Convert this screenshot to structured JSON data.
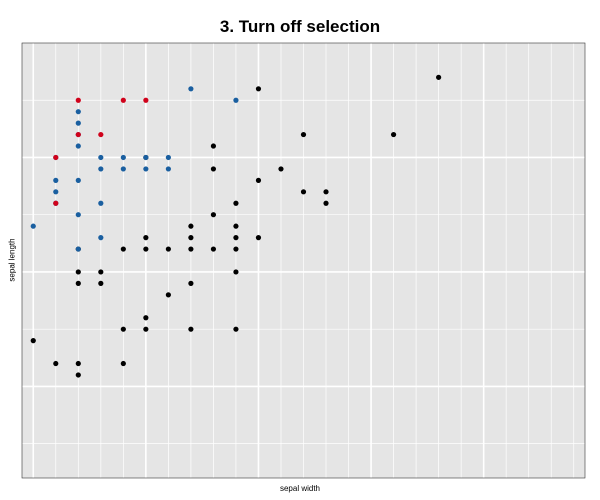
{
  "chart_data": {
    "type": "scatter",
    "title": "3. Turn off selection",
    "xlabel": "sepal width",
    "ylabel": "sepal length",
    "xlim": [
      1.95,
      4.45
    ],
    "ylim": [
      4.2,
      8.0
    ],
    "grid": true,
    "legend": "none",
    "background": "#e5e5e5",
    "grid_color": "#ffffff",
    "series": [
      {
        "color": "#000000",
        "points": [
          [
            3.8,
            7.7
          ],
          [
            3.0,
            7.6
          ],
          [
            3.6,
            7.2
          ],
          [
            3.2,
            7.2
          ],
          [
            2.8,
            7.1
          ],
          [
            2.5,
            7.0
          ],
          [
            2.8,
            6.9
          ],
          [
            3.1,
            6.9
          ],
          [
            3.0,
            6.8
          ],
          [
            3.2,
            6.7
          ],
          [
            3.3,
            6.7
          ],
          [
            3.3,
            6.6
          ],
          [
            2.9,
            6.6
          ],
          [
            2.8,
            6.5
          ],
          [
            2.9,
            6.4
          ],
          [
            2.7,
            6.4
          ],
          [
            2.7,
            6.3
          ],
          [
            2.9,
            6.3
          ],
          [
            3.0,
            6.3
          ],
          [
            2.5,
            6.3
          ],
          [
            2.2,
            6.2
          ],
          [
            2.4,
            6.2
          ],
          [
            2.5,
            6.2
          ],
          [
            2.6,
            6.2
          ],
          [
            2.7,
            6.2
          ],
          [
            2.8,
            6.2
          ],
          [
            2.9,
            6.2
          ],
          [
            2.2,
            6.0
          ],
          [
            2.3,
            6.0
          ],
          [
            2.9,
            6.0
          ],
          [
            2.2,
            5.9
          ],
          [
            2.3,
            5.9
          ],
          [
            2.7,
            5.9
          ],
          [
            2.6,
            5.8
          ],
          [
            2.5,
            5.6
          ],
          [
            2.4,
            5.5
          ],
          [
            2.5,
            5.5
          ],
          [
            2.7,
            5.5
          ],
          [
            2.9,
            5.5
          ],
          [
            2.0,
            5.4
          ],
          [
            2.1,
            5.2
          ],
          [
            2.2,
            5.2
          ],
          [
            2.4,
            5.2
          ],
          [
            2.2,
            5.1
          ]
        ]
      },
      {
        "color": "#1a5fa0",
        "points": [
          [
            2.7,
            7.6
          ],
          [
            2.9,
            7.5
          ],
          [
            2.2,
            7.4
          ],
          [
            2.2,
            7.3
          ],
          [
            2.2,
            7.2
          ],
          [
            2.1,
            7.0
          ],
          [
            2.2,
            7.1
          ],
          [
            2.3,
            7.0
          ],
          [
            2.4,
            7.0
          ],
          [
            2.5,
            7.0
          ],
          [
            2.6,
            7.0
          ],
          [
            2.3,
            6.9
          ],
          [
            2.4,
            6.9
          ],
          [
            2.5,
            6.9
          ],
          [
            2.6,
            6.9
          ],
          [
            2.2,
            6.8
          ],
          [
            2.1,
            6.8
          ],
          [
            2.1,
            6.7
          ],
          [
            2.1,
            6.6
          ],
          [
            2.3,
            6.6
          ],
          [
            2.2,
            6.5
          ],
          [
            2.0,
            6.4
          ],
          [
            2.3,
            6.3
          ],
          [
            2.2,
            6.2
          ]
        ]
      },
      {
        "color": "#d0021b",
        "points": [
          [
            2.2,
            7.5
          ],
          [
            2.4,
            7.5
          ],
          [
            2.5,
            7.5
          ],
          [
            2.2,
            7.2
          ],
          [
            2.3,
            7.2
          ],
          [
            2.1,
            7.0
          ],
          [
            2.1,
            6.6
          ]
        ]
      }
    ]
  }
}
